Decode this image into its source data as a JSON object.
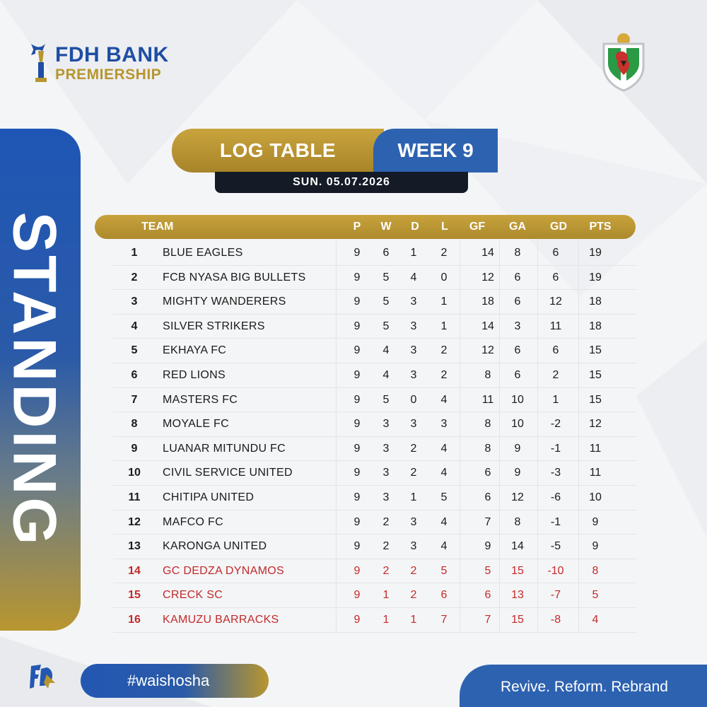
{
  "brand": {
    "line1": "FDH BANK",
    "line2": "PREMIERSHIP"
  },
  "side_label": "STANDING",
  "title": {
    "main": "LOG TABLE",
    "week": "WEEK 9",
    "date": "SUN. 05.07.2026"
  },
  "columns": [
    "TEAM",
    "P",
    "W",
    "D",
    "L",
    "GF",
    "GA",
    "GD",
    "PTS"
  ],
  "rows": [
    {
      "pos": "1",
      "team": "BLUE EAGLES",
      "p": "9",
      "w": "6",
      "d": "1",
      "l": "2",
      "gf": "14",
      "ga": "8",
      "gd": "6",
      "pts": "19",
      "relegation": false
    },
    {
      "pos": "2",
      "team": "FCB NYASA BIG BULLETS",
      "p": "9",
      "w": "5",
      "d": "4",
      "l": "0",
      "gf": "12",
      "ga": "6",
      "gd": "6",
      "pts": "19",
      "relegation": false
    },
    {
      "pos": "3",
      "team": "MIGHTY WANDERERS",
      "p": "9",
      "w": "5",
      "d": "3",
      "l": "1",
      "gf": "18",
      "ga": "6",
      "gd": "12",
      "pts": "18",
      "relegation": false
    },
    {
      "pos": "4",
      "team": "SILVER STRIKERS",
      "p": "9",
      "w": "5",
      "d": "3",
      "l": "1",
      "gf": "14",
      "ga": "3",
      "gd": "11",
      "pts": "18",
      "relegation": false
    },
    {
      "pos": "5",
      "team": "EKHAYA FC",
      "p": "9",
      "w": "4",
      "d": "3",
      "l": "2",
      "gf": "12",
      "ga": "6",
      "gd": "6",
      "pts": "15",
      "relegation": false
    },
    {
      "pos": "6",
      "team": "RED LIONS",
      "p": "9",
      "w": "4",
      "d": "3",
      "l": "2",
      "gf": "8",
      "ga": "6",
      "gd": "2",
      "pts": "15",
      "relegation": false
    },
    {
      "pos": "7",
      "team": "MASTERS FC",
      "p": "9",
      "w": "5",
      "d": "0",
      "l": "4",
      "gf": "11",
      "ga": "10",
      "gd": "1",
      "pts": "15",
      "relegation": false
    },
    {
      "pos": "8",
      "team": "MOYALE FC",
      "p": "9",
      "w": "3",
      "d": "3",
      "l": "3",
      "gf": "8",
      "ga": "10",
      "gd": "-2",
      "pts": "12",
      "relegation": false
    },
    {
      "pos": "9",
      "team": "LUANAR MITUNDU FC",
      "p": "9",
      "w": "3",
      "d": "2",
      "l": "4",
      "gf": "8",
      "ga": "9",
      "gd": "-1",
      "pts": "11",
      "relegation": false
    },
    {
      "pos": "10",
      "team": "CIVIL SERVICE UNITED",
      "p": "9",
      "w": "3",
      "d": "2",
      "l": "4",
      "gf": "6",
      "ga": "9",
      "gd": "-3",
      "pts": "11",
      "relegation": false
    },
    {
      "pos": "11",
      "team": "CHITIPA UNITED",
      "p": "9",
      "w": "3",
      "d": "1",
      "l": "5",
      "gf": "6",
      "ga": "12",
      "gd": "-6",
      "pts": "10",
      "relegation": false
    },
    {
      "pos": "12",
      "team": "MAFCO FC",
      "p": "9",
      "w": "2",
      "d": "3",
      "l": "4",
      "gf": "7",
      "ga": "8",
      "gd": "-1",
      "pts": "9",
      "relegation": false
    },
    {
      "pos": "13",
      "team": "KARONGA UNITED",
      "p": "9",
      "w": "2",
      "d": "3",
      "l": "4",
      "gf": "9",
      "ga": "14",
      "gd": "-5",
      "pts": "9",
      "relegation": false
    },
    {
      "pos": "14",
      "team": "GC DEDZA DYNAMOS",
      "p": "9",
      "w": "2",
      "d": "2",
      "l": "5",
      "gf": "5",
      "ga": "15",
      "gd": "-10",
      "pts": "8",
      "relegation": true
    },
    {
      "pos": "15",
      "team": "CRECK SC",
      "p": "9",
      "w": "1",
      "d": "2",
      "l": "6",
      "gf": "6",
      "ga": "13",
      "gd": "-7",
      "pts": "5",
      "relegation": true
    },
    {
      "pos": "16",
      "team": "KAMUZU BARRACKS",
      "p": "9",
      "w": "1",
      "d": "1",
      "l": "7",
      "gf": "7",
      "ga": "15",
      "gd": "-8",
      "pts": "4",
      "relegation": true
    }
  ],
  "footer": {
    "hashtag": "#waishosha",
    "slogan": "Revive. Reform. Rebrand"
  },
  "colors": {
    "blue": "#2d62b0",
    "gold": "#b8962e",
    "dark": "#141b26",
    "relegation": "#c42a2a"
  },
  "icons": {
    "brand_mark": "trophy-figure-icon",
    "crest": "lion-shield-crest-icon",
    "footer_logo": "fdh-monogram-icon"
  }
}
